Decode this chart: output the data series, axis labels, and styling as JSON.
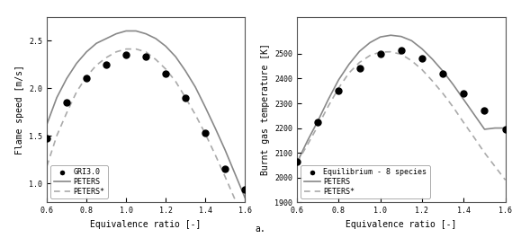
{
  "left_plot": {
    "xlabel": "Equivalence ratio [-]",
    "ylabel": "Flame speed [m/s]",
    "xlim": [
      0.6,
      1.6
    ],
    "ylim": [
      0.8,
      2.75
    ],
    "yticks": [
      1.0,
      1.5,
      2.0,
      2.5
    ],
    "xticks": [
      0.6,
      0.8,
      1.0,
      1.2,
      1.4,
      1.6
    ],
    "gri_x": [
      0.6,
      0.7,
      0.8,
      0.9,
      1.0,
      1.1,
      1.2,
      1.3,
      1.4,
      1.5,
      1.6
    ],
    "gri_y": [
      1.47,
      1.85,
      2.1,
      2.25,
      2.35,
      2.33,
      2.15,
      1.9,
      1.53,
      1.15,
      0.93
    ],
    "peters_x": [
      0.6,
      0.65,
      0.7,
      0.75,
      0.8,
      0.85,
      0.9,
      0.95,
      1.0,
      1.05,
      1.1,
      1.15,
      1.2,
      1.25,
      1.3,
      1.35,
      1.4,
      1.45,
      1.5,
      1.55,
      1.6
    ],
    "peters_y": [
      1.62,
      1.9,
      2.1,
      2.26,
      2.38,
      2.47,
      2.52,
      2.57,
      2.6,
      2.6,
      2.57,
      2.52,
      2.44,
      2.33,
      2.18,
      2.01,
      1.8,
      1.58,
      1.35,
      1.1,
      0.85
    ],
    "peters_star_x": [
      0.6,
      0.65,
      0.7,
      0.75,
      0.8,
      0.85,
      0.9,
      0.95,
      1.0,
      1.05,
      1.1,
      1.15,
      1.2,
      1.25,
      1.3,
      1.35,
      1.4,
      1.45,
      1.5,
      1.55,
      1.6
    ],
    "peters_star_y": [
      1.18,
      1.5,
      1.74,
      1.96,
      2.12,
      2.24,
      2.32,
      2.38,
      2.41,
      2.41,
      2.38,
      2.3,
      2.2,
      2.07,
      1.9,
      1.72,
      1.52,
      1.3,
      1.07,
      0.83,
      0.58
    ],
    "legend_labels": [
      "GRI3.0",
      "PETERS",
      "PETERS*"
    ],
    "line_color": "#aaaaaa",
    "dashed_color": "#aaaaaa",
    "dot_color": "#000000"
  },
  "right_plot": {
    "xlabel": "Equivalence ratio [-]",
    "ylabel": "Burnt gas temperature [K]",
    "xlim": [
      0.6,
      1.6
    ],
    "ylim": [
      1900,
      2650
    ],
    "yticks": [
      1900,
      2000,
      2100,
      2200,
      2300,
      2400,
      2500
    ],
    "xticks": [
      0.6,
      0.8,
      1.0,
      1.2,
      1.4,
      1.6
    ],
    "equil_x": [
      0.6,
      0.7,
      0.8,
      0.9,
      1.0,
      1.1,
      1.2,
      1.3,
      1.4,
      1.5,
      1.6
    ],
    "equil_y": [
      2065,
      2225,
      2350,
      2440,
      2500,
      2515,
      2480,
      2420,
      2340,
      2270,
      2195
    ],
    "peters_x": [
      0.6,
      0.65,
      0.7,
      0.75,
      0.8,
      0.85,
      0.9,
      0.95,
      1.0,
      1.05,
      1.1,
      1.15,
      1.2,
      1.25,
      1.3,
      1.35,
      1.4,
      1.45,
      1.5,
      1.55,
      1.6
    ],
    "peters_y": [
      2060,
      2148,
      2228,
      2315,
      2395,
      2458,
      2510,
      2545,
      2568,
      2575,
      2570,
      2553,
      2520,
      2478,
      2430,
      2375,
      2315,
      2255,
      2195,
      2200,
      2200
    ],
    "peters_star_x": [
      0.6,
      0.65,
      0.7,
      0.75,
      0.8,
      0.85,
      0.9,
      0.95,
      1.0,
      1.05,
      1.1,
      1.15,
      1.2,
      1.25,
      1.3,
      1.35,
      1.4,
      1.45,
      1.5,
      1.55,
      1.6
    ],
    "peters_star_y": [
      2060,
      2132,
      2208,
      2288,
      2362,
      2423,
      2465,
      2493,
      2507,
      2508,
      2498,
      2472,
      2436,
      2390,
      2340,
      2284,
      2222,
      2162,
      2100,
      2045,
      1990
    ],
    "legend_labels": [
      "Equilibrium - 8 species",
      "PETERS",
      "PETERS*"
    ],
    "line_color": "#aaaaaa",
    "dashed_color": "#aaaaaa",
    "dot_color": "#000000"
  },
  "label_a": "a.",
  "bg_color": "#ffffff",
  "font_size": 7,
  "tick_font_size": 6,
  "legend_font_size": 6
}
